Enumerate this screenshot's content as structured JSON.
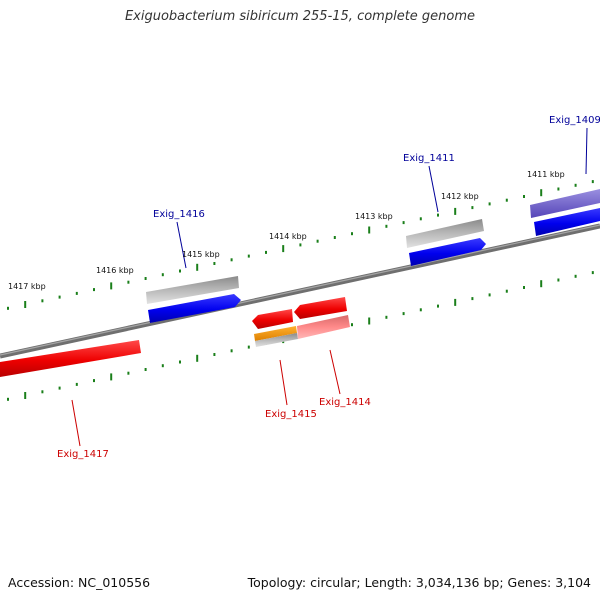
{
  "title": "Exiguobacterium sibiricum 255-15, complete genome",
  "accession": "Accession: NC_010556",
  "topology": "Topology: circular; Length: 3,034,136 bp; Genes: 3,104",
  "colors": {
    "backbone": "#777777",
    "tick": "#1a7f1a",
    "forward_cds": "#0000ee",
    "reverse_cds": "#ee0000",
    "forward_gene": "#9a9a9a",
    "reverse_gene": "#ff7f7f",
    "forward_label": "#000099",
    "reverse_label": "#cc0000",
    "orange_feature": "#f59b00",
    "purple_feature": "#6e5fc9"
  },
  "scale_labels": [
    "1411 kbp",
    "1412 kbp",
    "1413 kbp",
    "1414 kbp",
    "1415 kbp",
    "1416 kbp",
    "1417 kbp"
  ],
  "genes": [
    {
      "id": "Exig_1409",
      "strand": "forward"
    },
    {
      "id": "Exig_1411",
      "strand": "forward"
    },
    {
      "id": "Exig_1416",
      "strand": "forward"
    },
    {
      "id": "Exig_1414",
      "strand": "reverse"
    },
    {
      "id": "Exig_1415",
      "strand": "reverse"
    },
    {
      "id": "Exig_1417",
      "strand": "reverse"
    }
  ]
}
